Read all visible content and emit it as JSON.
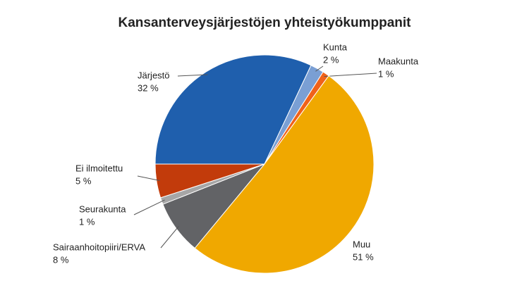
{
  "chart_data": {
    "type": "pie",
    "title": "Kansanterveysjärjestöjen yhteistyökumppanit",
    "categories": [
      "Järjestö",
      "Kunta",
      "Maakunta",
      "Muu",
      "Sairaanhoitopiiri/ERVA",
      "Seurakunta",
      "Ei ilmoitettu"
    ],
    "values": [
      32,
      2,
      1,
      51,
      8,
      1,
      5
    ],
    "value_labels": [
      "32 %",
      "2 %",
      "1 %",
      "51 %",
      "8 %",
      "1 %",
      "5 %"
    ],
    "colors": [
      "#1f5fad",
      "#7a9fd4",
      "#f0621a",
      "#f0a800",
      "#626366",
      "#a6a6a6",
      "#c23b0b"
    ]
  }
}
